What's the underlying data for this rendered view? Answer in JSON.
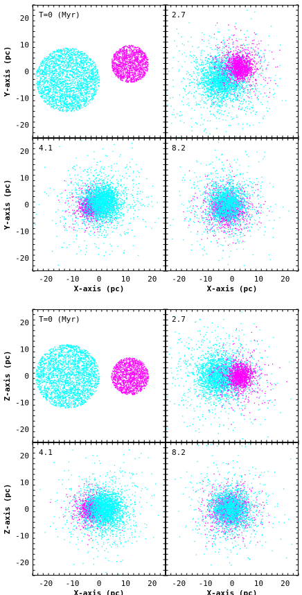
{
  "chart_data": [
    {
      "type": "scatter",
      "title": "",
      "xlabel": "X-axis (pc)",
      "ylabel": "Y-axis (pc)",
      "xlim": [
        -25,
        25
      ],
      "ylim": [
        -25,
        25
      ],
      "xticks": [
        -20,
        -10,
        0,
        10,
        20
      ],
      "yticks": [
        -20,
        -10,
        0,
        10,
        20
      ],
      "colors": {
        "cluster_a": "#00ffff",
        "cluster_b": "#ff00ff"
      },
      "panels": [
        {
          "label": "T=0 (Myr)",
          "time_myr": 0,
          "clusters": [
            {
              "color_key": "cluster_a",
              "center": [
                -12,
                -3
              ],
              "radius": 12,
              "profile": "uniform",
              "n": 2600
            },
            {
              "color_key": "cluster_b",
              "center": [
                11.5,
                3
              ],
              "radius": 7,
              "profile": "uniform",
              "n": 1400
            }
          ]
        },
        {
          "label": "2.7",
          "time_myr": 2.7,
          "clusters": [
            {
              "color_key": "cluster_a",
              "center": [
                -4,
                -3
              ],
              "radius": 7,
              "profile": "plummer",
              "n": 2600
            },
            {
              "color_key": "cluster_b",
              "center": [
                3,
                2
              ],
              "radius": 4,
              "profile": "plummer",
              "n": 1400
            }
          ]
        },
        {
          "label": "4.1",
          "time_myr": 4.1,
          "clusters": [
            {
              "color_key": "cluster_b",
              "center": [
                -3,
                -0.5
              ],
              "radius": 3,
              "profile": "plummer",
              "n": 1400
            },
            {
              "color_key": "cluster_a",
              "center": [
                1,
                1
              ],
              "radius": 6,
              "profile": "plummer",
              "n": 2600
            }
          ]
        },
        {
          "label": "8.2",
          "time_myr": 8.2,
          "clusters": [
            {
              "color_key": "cluster_b",
              "center": [
                -2,
                -1
              ],
              "radius": 4,
              "profile": "plummer",
              "n": 2000
            },
            {
              "color_key": "cluster_a",
              "center": [
                -2,
                0.5
              ],
              "radius": 6,
              "profile": "plummer",
              "n": 2000
            }
          ]
        }
      ]
    },
    {
      "type": "scatter",
      "title": "",
      "xlabel": "X-axis (pc)",
      "ylabel": "Z-axis (pc)",
      "xlim": [
        -25,
        25
      ],
      "ylim": [
        -25,
        25
      ],
      "xticks": [
        -20,
        -10,
        0,
        10,
        20
      ],
      "yticks": [
        -20,
        -10,
        0,
        10,
        20
      ],
      "colors": {
        "cluster_a": "#00ffff",
        "cluster_b": "#ff00ff"
      },
      "panels": [
        {
          "label": "T=0 (Myr)",
          "time_myr": 0,
          "clusters": [
            {
              "color_key": "cluster_a",
              "center": [
                -12,
                0
              ],
              "radius": 12,
              "profile": "uniform",
              "n": 2600
            },
            {
              "color_key": "cluster_b",
              "center": [
                11.5,
                0
              ],
              "radius": 7,
              "profile": "uniform",
              "n": 1400
            }
          ]
        },
        {
          "label": "2.7",
          "time_myr": 2.7,
          "clusters": [
            {
              "color_key": "cluster_a",
              "center": [
                -5,
                0
              ],
              "radius": 7,
              "profile": "plummer",
              "n": 2600
            },
            {
              "color_key": "cluster_b",
              "center": [
                3,
                0
              ],
              "radius": 4,
              "profile": "plummer",
              "n": 1400
            }
          ]
        },
        {
          "label": "4.1",
          "time_myr": 4.1,
          "clusters": [
            {
              "color_key": "cluster_b",
              "center": [
                -3,
                0
              ],
              "radius": 3,
              "profile": "plummer",
              "n": 1400
            },
            {
              "color_key": "cluster_a",
              "center": [
                2,
                0
              ],
              "radius": 6,
              "profile": "plummer",
              "n": 2600
            }
          ]
        },
        {
          "label": "8.2",
          "time_myr": 8.2,
          "clusters": [
            {
              "color_key": "cluster_b",
              "center": [
                -1,
                0
              ],
              "radius": 4,
              "profile": "plummer",
              "n": 2000
            },
            {
              "color_key": "cluster_a",
              "center": [
                -1,
                0
              ],
              "radius": 6,
              "profile": "plummer",
              "n": 2000
            }
          ]
        }
      ]
    }
  ]
}
